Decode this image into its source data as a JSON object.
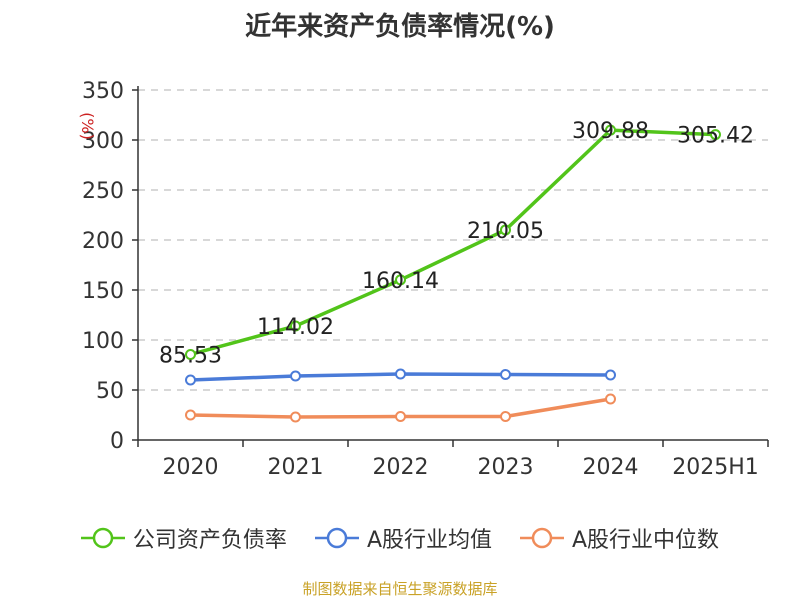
{
  "chart_data": {
    "type": "line",
    "title": "近年来资产负债率情况(%)",
    "ylabel": "(%)",
    "categories": [
      "2020",
      "2021",
      "2022",
      "2023",
      "2024",
      "2025H1"
    ],
    "ylim": [
      0,
      350
    ],
    "yticks": [
      0,
      50,
      100,
      150,
      200,
      250,
      300,
      350
    ],
    "grid": true,
    "legend_position": "bottom",
    "series": [
      {
        "name": "公司资产负债率",
        "color": "#52c41a",
        "values": [
          85.53,
          114.02,
          160.14,
          210.05,
          309.88,
          305.42
        ],
        "labels": [
          "85.53",
          "114.02",
          "160.14",
          "210.05",
          "309.88",
          "305.42"
        ]
      },
      {
        "name": "A股行业均值",
        "color": "#4a7bd8",
        "values": [
          60,
          64,
          66,
          65.5,
          65,
          null
        ]
      },
      {
        "name": "A股行业中位数",
        "color": "#f08c5a",
        "values": [
          25,
          23,
          23.5,
          23.5,
          41,
          null
        ]
      }
    ]
  },
  "source": "制图数据来自恒生聚源数据库"
}
